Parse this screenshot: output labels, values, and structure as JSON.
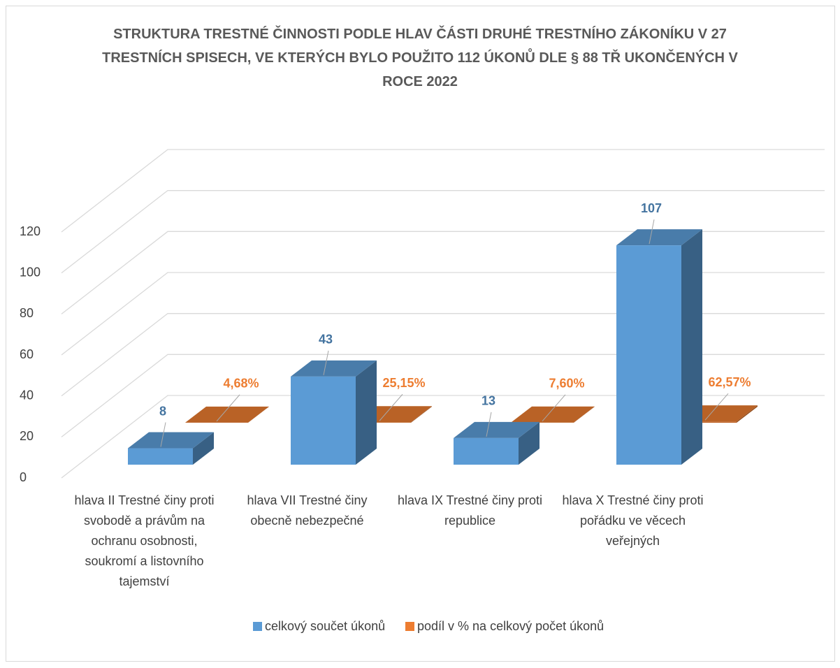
{
  "chart_data": {
    "type": "bar3d",
    "title": "STRUKTURA TRESTNÉ ČINNOSTI PODLE HLAV ČÁSTI DRUHÉ TRESTNÍHO ZÁKONÍKU V 27 TRESTNÍCH SPISECH, VE KTERÝCH BYLO POUŽITO 112 ÚKONŮ DLE § 88 TŘ UKONČENÝCH V ROCE 2022",
    "categories": [
      "hlava II Trestné činy proti svobodě a právům na ochranu osobnosti, soukromí a listovního tajemství",
      "hlava VII Trestné činy obecně nebezpečné",
      "hlava IX Trestné činy proti republice",
      "hlava X Trestné činy proti pořádku ve věcech veřejných"
    ],
    "series": [
      {
        "name": "celkový součet úkonů",
        "color": "#5b9bd5",
        "values": [
          8,
          43,
          13,
          107
        ]
      },
      {
        "name": "podíl v % na celkový počet úkonů",
        "color": "#ed7d31",
        "values": [
          0.0468,
          0.2515,
          0.076,
          0.6257
        ],
        "value_labels": [
          "4,68%",
          "25,15%",
          "7,60%",
          "62,57%"
        ]
      }
    ],
    "ylim": [
      0,
      120
    ],
    "yticks": [
      0,
      20,
      40,
      60,
      80,
      100,
      120
    ],
    "grid": true,
    "legend": "bottom"
  }
}
